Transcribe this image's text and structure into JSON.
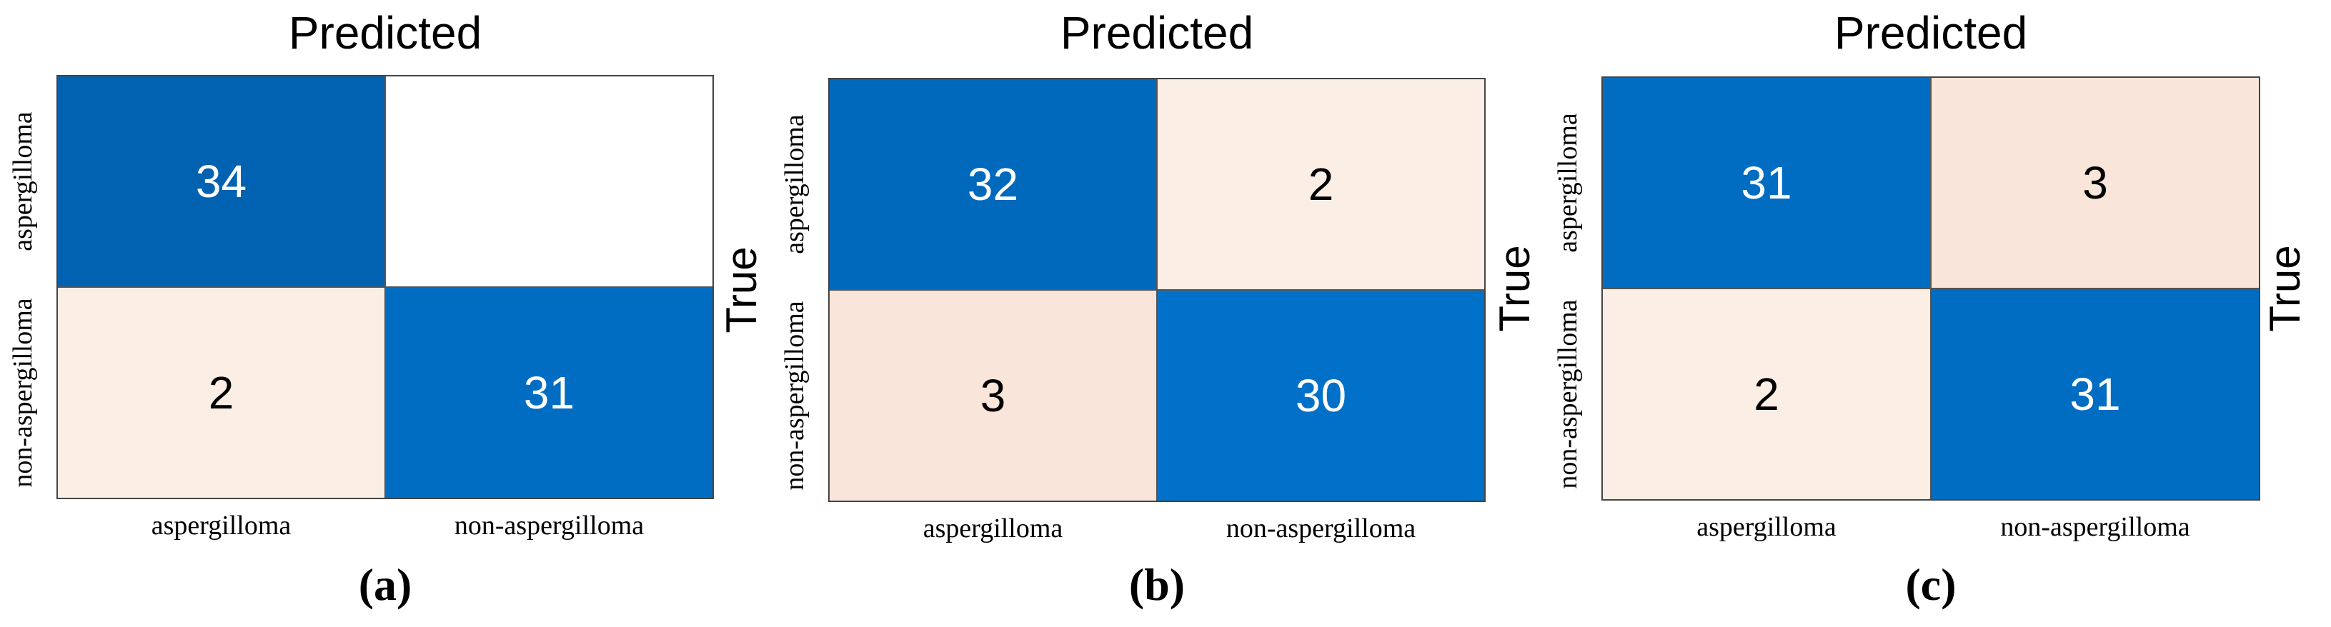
{
  "chart_data": [
    {
      "type": "heatmap",
      "title": "Predicted",
      "ylabel": "",
      "panel_label": "(a)",
      "x_categories": [
        "aspergilloma",
        "non-aspergilloma"
      ],
      "y_categories": [
        "aspergilloma",
        "non-aspergilloma"
      ],
      "values": [
        [
          34,
          0
        ],
        [
          2,
          31
        ]
      ],
      "value_labels": [
        [
          "34",
          ""
        ],
        [
          "2",
          "31"
        ]
      ]
    },
    {
      "type": "heatmap",
      "title": "Predicted",
      "ylabel": "True",
      "panel_label": "(b)",
      "x_categories": [
        "aspergilloma",
        "non-aspergilloma"
      ],
      "y_categories": [
        "aspergilloma",
        "non-aspergilloma"
      ],
      "values": [
        [
          32,
          2
        ],
        [
          3,
          30
        ]
      ],
      "value_labels": [
        [
          "32",
          "2"
        ],
        [
          "3",
          "30"
        ]
      ]
    },
    {
      "type": "heatmap",
      "title": "Predicted",
      "ylabel": "True",
      "panel_label": "(c)",
      "x_categories": [
        "aspergilloma",
        "non-aspergilloma"
      ],
      "y_categories": [
        "aspergilloma",
        "non-aspergilloma"
      ],
      "values": [
        [
          31,
          3
        ],
        [
          2,
          31
        ]
      ],
      "value_labels": [
        [
          "31",
          "3"
        ],
        [
          "2",
          "31"
        ]
      ]
    }
  ],
  "colors": {
    "high": "#0070c8",
    "low": "#fbeee5",
    "zero": "#ffffff",
    "text_on_dark": "#ffffff",
    "text_on_light": "#000000"
  }
}
